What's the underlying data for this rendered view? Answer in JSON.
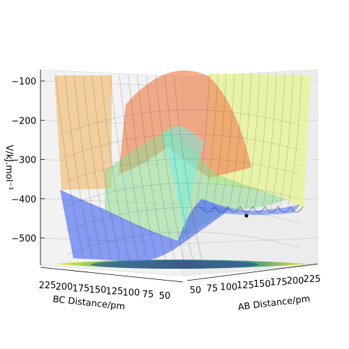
{
  "chart_data": {
    "type": "surface",
    "zlabel": "V/kJ.mol⁻¹",
    "xlabel": "AB Distance/pm",
    "ylabel": "BC Distance/pm",
    "z_ticks": [
      "−100",
      "−200",
      "−300",
      "−400",
      "−500"
    ],
    "z_values": [
      -100,
      -200,
      -300,
      -400,
      -500
    ],
    "x_ticks": [
      "50",
      "75",
      "100",
      "125",
      "150",
      "175",
      "200",
      "225"
    ],
    "x_values": [
      50,
      75,
      100,
      125,
      150,
      175,
      200,
      225
    ],
    "y_ticks": [
      "225",
      "200",
      "175",
      "150",
      "125",
      "100",
      "75",
      "50"
    ],
    "y_values": [
      225,
      200,
      175,
      150,
      125,
      100,
      75,
      50
    ],
    "zlim": [
      -560,
      -80
    ],
    "surface_colormap": "jet",
    "floor_colormap": "viridis",
    "marker_color": "#000000"
  }
}
